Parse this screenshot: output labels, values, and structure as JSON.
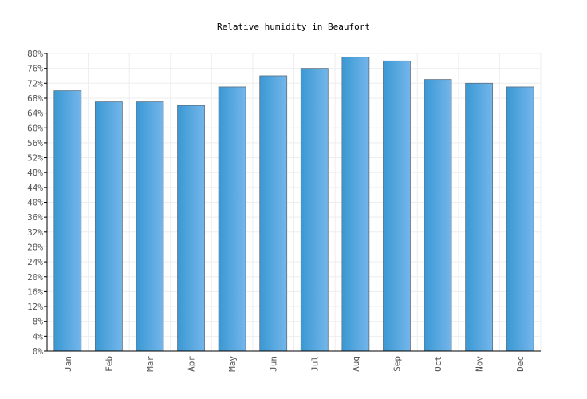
{
  "chart_data": {
    "type": "bar",
    "title": "Relative humidity in Beaufort",
    "categories": [
      "Jan",
      "Feb",
      "Mar",
      "Apr",
      "May",
      "Jun",
      "Jul",
      "Aug",
      "Sep",
      "Oct",
      "Nov",
      "Dec"
    ],
    "values": [
      70,
      67,
      67,
      66,
      71,
      74,
      76,
      79,
      78,
      73,
      72,
      71
    ],
    "ylim": [
      0,
      80
    ],
    "yticks": [
      "0%",
      "4%",
      "8%",
      "12%",
      "16%",
      "20%",
      "24%",
      "28%",
      "32%",
      "36%",
      "40%",
      "44%",
      "48%",
      "52%",
      "56%",
      "60%",
      "64%",
      "68%",
      "72%",
      "76%",
      "80%"
    ],
    "grid": true,
    "colors": {
      "bar_light": "#74b6eb",
      "bar_dark": "#3a98d3",
      "bar_edge": "#5c6f80",
      "grid": "#eeeeee",
      "axis": "#000000"
    }
  }
}
